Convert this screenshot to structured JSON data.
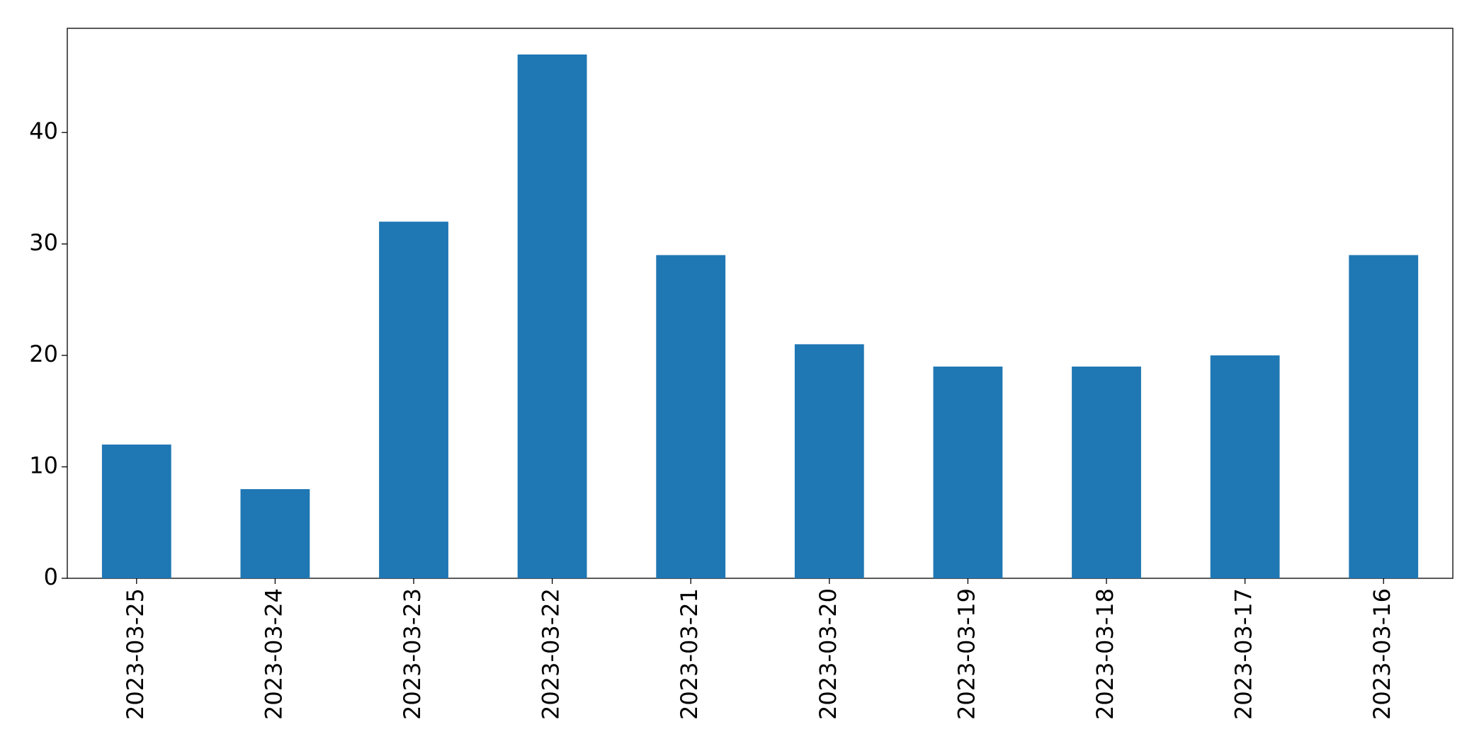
{
  "chart_data": {
    "type": "bar",
    "categories": [
      "2023-03-25",
      "2023-03-24",
      "2023-03-23",
      "2023-03-22",
      "2023-03-21",
      "2023-03-20",
      "2023-03-19",
      "2023-03-18",
      "2023-03-17",
      "2023-03-16"
    ],
    "values": [
      12,
      8,
      32,
      47,
      29,
      21,
      19,
      19,
      20,
      29
    ],
    "color": "#1f77b4",
    "ylim": [
      0,
      49.35
    ],
    "yticks": [
      0,
      10,
      20,
      30,
      40
    ],
    "grid": false
  }
}
